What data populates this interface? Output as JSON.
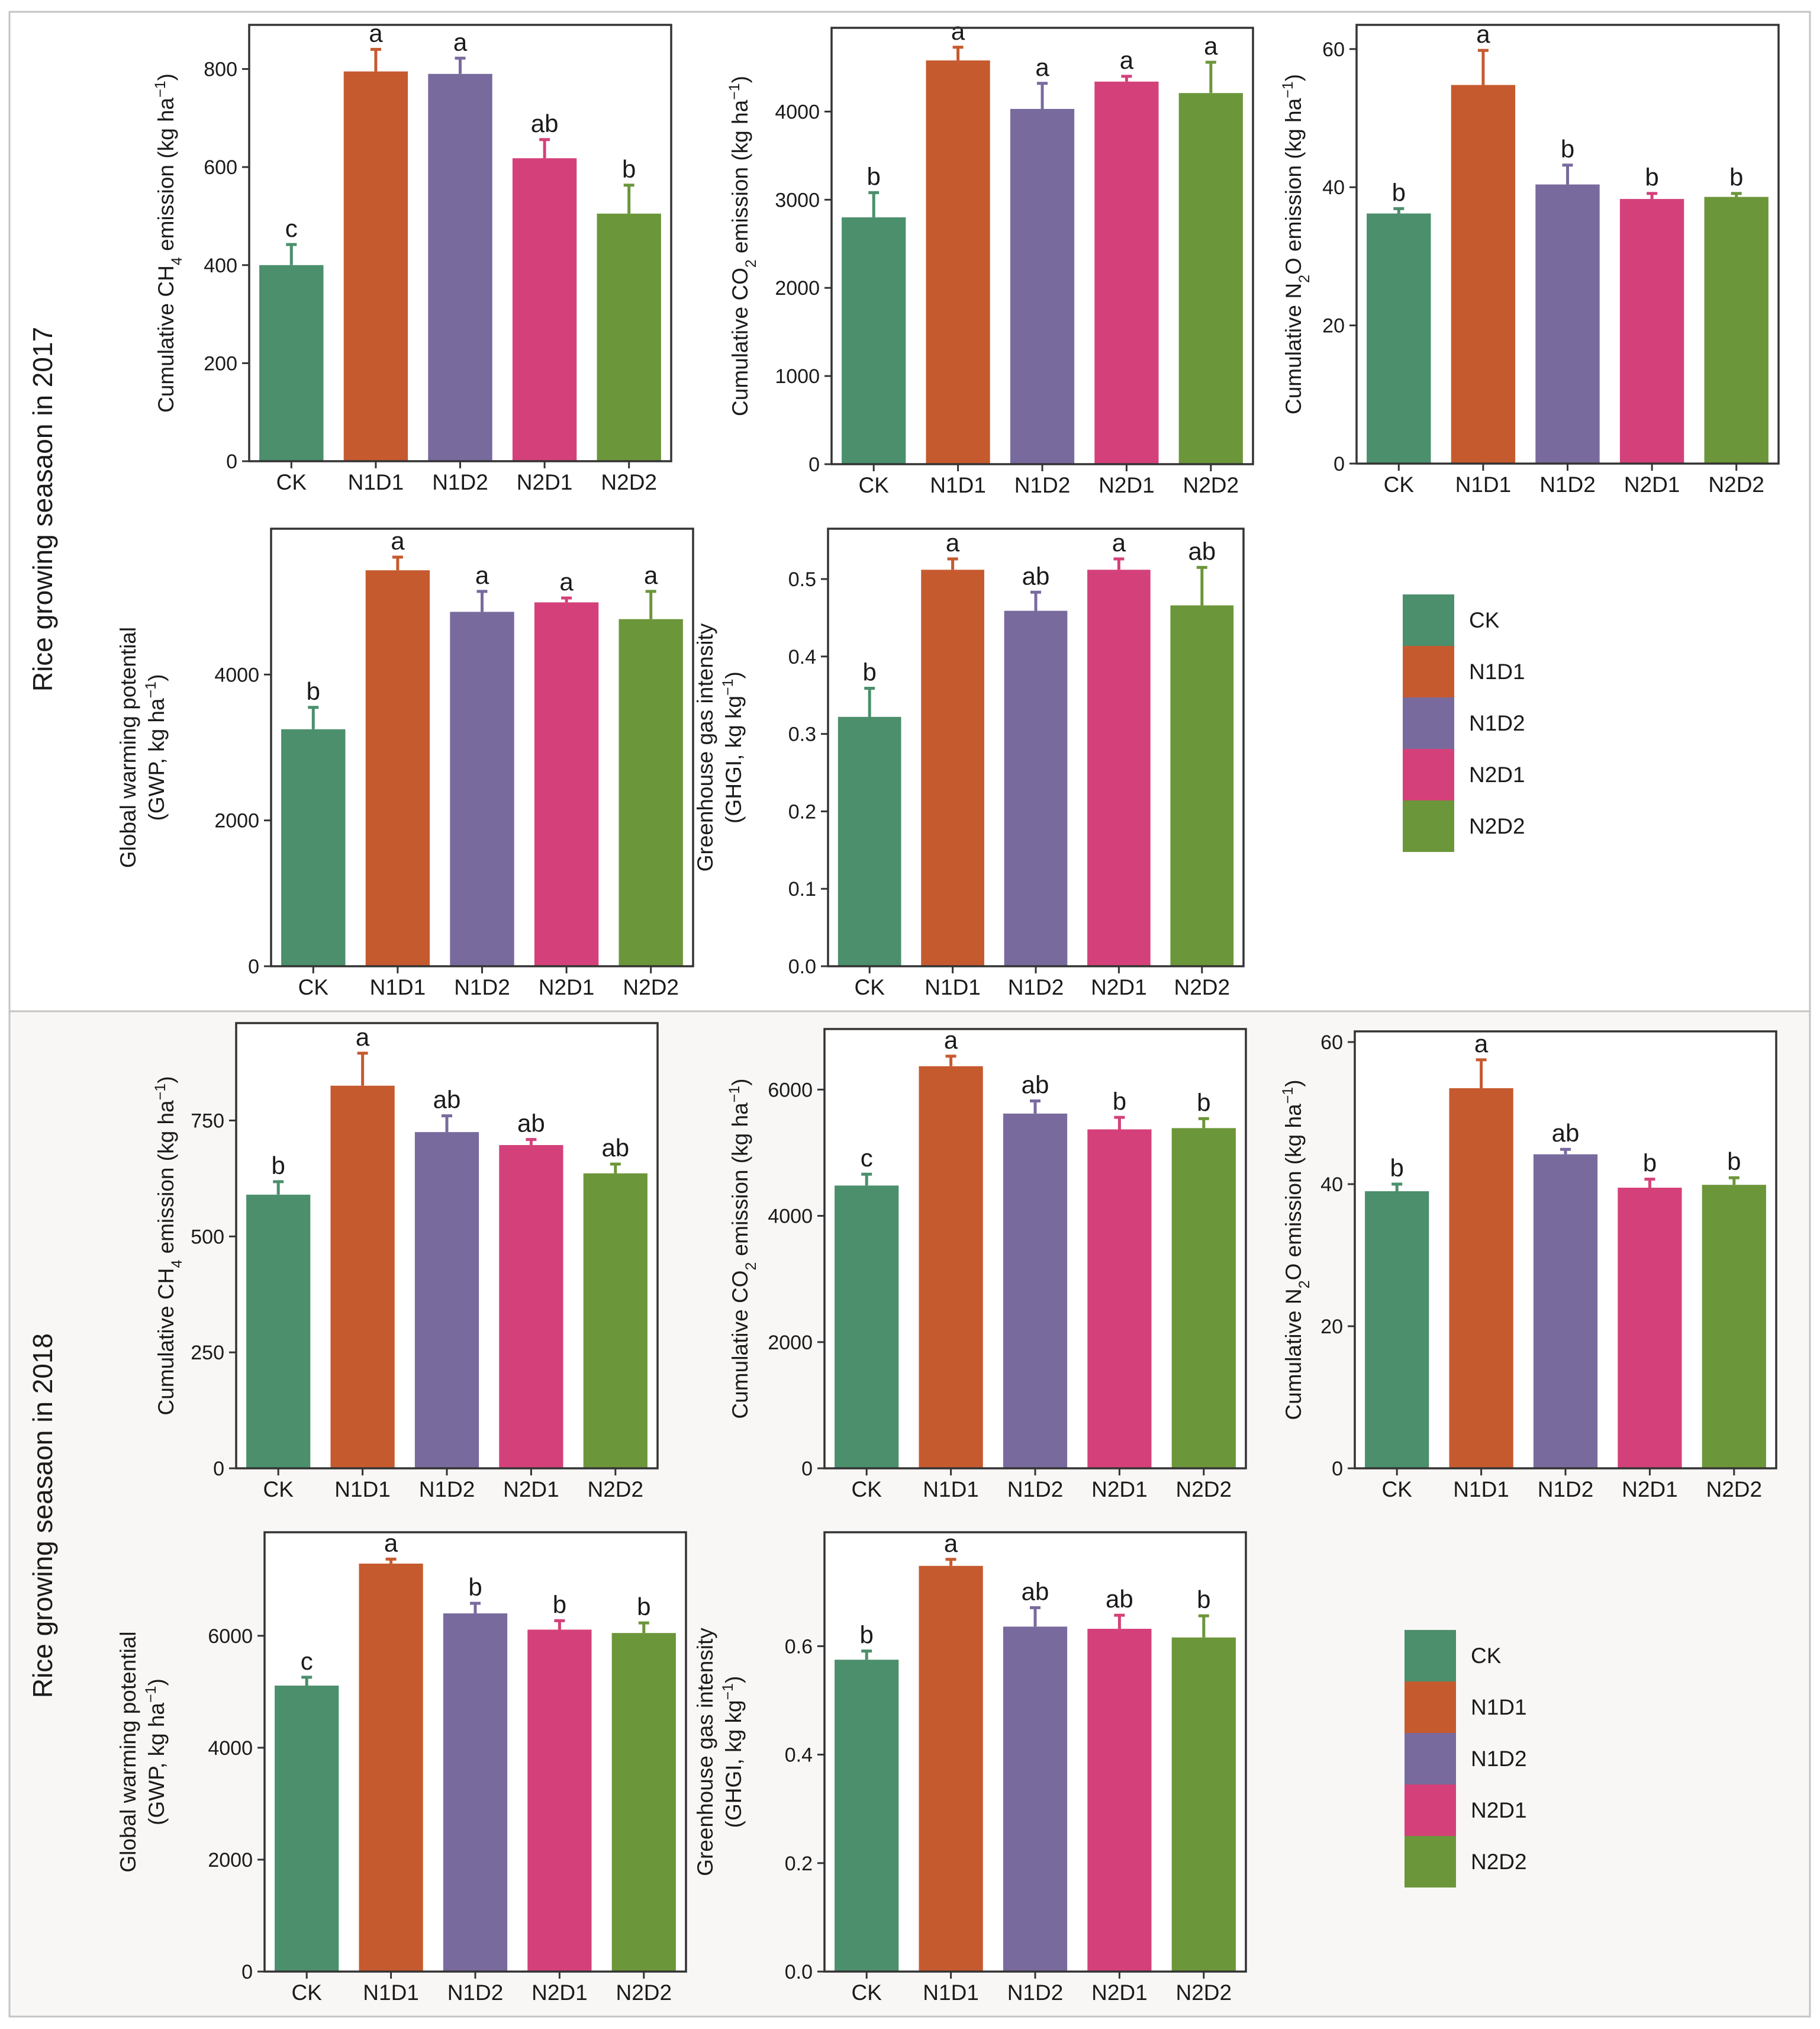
{
  "figure": {
    "colors": {
      "CK": "#4b8f6c",
      "N1D1": "#c65a2f",
      "N1D2": "#796a9e",
      "N2D1": "#d4417a",
      "N2D2": "#6c963a"
    },
    "sections": [
      {
        "title": "Rice growing seasaon in 2017",
        "legend": {
          "items": [
            "CK",
            "N1D1",
            "N1D2",
            "N2D1",
            "N2D2"
          ]
        },
        "panels": [
          {
            "y_label": {
              "lines": [
                [
                  [
                    "t",
                    "Cumulative CH"
                  ],
                  [
                    "sub",
                    "4"
                  ],
                  [
                    "t",
                    " emission (kg ha"
                  ],
                  [
                    "sup",
                    "−1"
                  ],
                  [
                    "t",
                    ")"
                  ]
                ]
              ]
            }
          },
          {
            "y_label": {
              "lines": [
                [
                  [
                    "t",
                    "Cumulative CO"
                  ],
                  [
                    "sub",
                    "2"
                  ],
                  [
                    "t",
                    " emission (kg ha"
                  ],
                  [
                    "sup",
                    "−1"
                  ],
                  [
                    "t",
                    ")"
                  ]
                ]
              ]
            }
          },
          {
            "y_label": {
              "lines": [
                [
                  [
                    "t",
                    "Cumulative N"
                  ],
                  [
                    "sub",
                    "2"
                  ],
                  [
                    "t",
                    "O emission (kg ha"
                  ],
                  [
                    "sup",
                    "−1"
                  ],
                  [
                    "t",
                    ")"
                  ]
                ]
              ]
            }
          },
          {
            "y_label": {
              "lines": [
                [
                  [
                    "t",
                    "Global warming potential"
                  ]
                ],
                [
                  [
                    "t",
                    "(GWP, kg ha"
                  ],
                  [
                    "sup",
                    "−1"
                  ],
                  [
                    "t",
                    ")"
                  ]
                ]
              ]
            }
          },
          {
            "y_label": {
              "lines": [
                [
                  [
                    "t",
                    "Greenhouse gas intensity"
                  ]
                ],
                [
                  [
                    "t",
                    "(GHGI, kg kg"
                  ],
                  [
                    "sup",
                    "−1"
                  ],
                  [
                    "t",
                    ")"
                  ]
                ]
              ]
            }
          }
        ]
      },
      {
        "title": "Rice growing seasaon in 2018",
        "legend": {
          "items": [
            "CK",
            "N1D1",
            "N1D2",
            "N2D1",
            "N2D2"
          ]
        },
        "panels": [
          {
            "y_label": {
              "lines": [
                [
                  [
                    "t",
                    "Cumulative CH"
                  ],
                  [
                    "sub",
                    "4"
                  ],
                  [
                    "t",
                    " emission (kg ha"
                  ],
                  [
                    "sup",
                    "−1"
                  ],
                  [
                    "t",
                    ")"
                  ]
                ]
              ]
            }
          },
          {
            "y_label": {
              "lines": [
                [
                  [
                    "t",
                    "Cumulative CO"
                  ],
                  [
                    "sub",
                    "2"
                  ],
                  [
                    "t",
                    " emission (kg ha"
                  ],
                  [
                    "sup",
                    "−1"
                  ],
                  [
                    "t",
                    ")"
                  ]
                ]
              ]
            }
          },
          {
            "y_label": {
              "lines": [
                [
                  [
                    "t",
                    "Cumulative N"
                  ],
                  [
                    "sub",
                    "2"
                  ],
                  [
                    "t",
                    "O emission (kg ha"
                  ],
                  [
                    "sup",
                    "−1"
                  ],
                  [
                    "t",
                    ")"
                  ]
                ]
              ]
            }
          },
          {
            "y_label": {
              "lines": [
                [
                  [
                    "t",
                    "Global warming potential"
                  ]
                ],
                [
                  [
                    "t",
                    "(GWP, kg ha"
                  ],
                  [
                    "sup",
                    "−1"
                  ],
                  [
                    "t",
                    ")"
                  ]
                ]
              ]
            }
          },
          {
            "y_label": {
              "lines": [
                [
                  [
                    "t",
                    "Greenhouse gas intensity"
                  ]
                ],
                [
                  [
                    "t",
                    "(GHGI, kg kg"
                  ],
                  [
                    "sup",
                    "−1"
                  ],
                  [
                    "t",
                    ")"
                  ]
                ]
              ]
            }
          }
        ]
      }
    ]
  },
  "chart_data": [
    {
      "type": "bar",
      "season": "2017",
      "title": "Cumulative CH4 emission",
      "ylabel": "Cumulative CH4 emission (kg ha−1)",
      "categories": [
        "CK",
        "N1D1",
        "N1D2",
        "N2D1",
        "N2D2"
      ],
      "values": [
        400,
        795,
        790,
        618,
        505
      ],
      "errors": [
        42,
        45,
        32,
        38,
        58
      ],
      "letters": [
        "c",
        "a",
        "a",
        "ab",
        "b"
      ],
      "ylim": [
        0,
        890
      ],
      "yticks": [
        0,
        200,
        400,
        600,
        800
      ],
      "ytick_labels": [
        "0",
        "200",
        "400",
        "600",
        "800"
      ]
    },
    {
      "type": "bar",
      "season": "2017",
      "title": "Cumulative CO2 emission",
      "ylabel": "Cumulative CO2 emission (kg ha−1)",
      "categories": [
        "CK",
        "N1D1",
        "N1D2",
        "N2D1",
        "N2D2"
      ],
      "values": [
        2800,
        4580,
        4030,
        4340,
        4210
      ],
      "errors": [
        280,
        150,
        290,
        60,
        350
      ],
      "letters": [
        "b",
        "a",
        "a",
        "a",
        "a"
      ],
      "ylim": [
        0,
        4950
      ],
      "yticks": [
        0,
        1000,
        2000,
        3000,
        4000
      ],
      "ytick_labels": [
        "0",
        "1000",
        "2000",
        "3000",
        "4000"
      ]
    },
    {
      "type": "bar",
      "season": "2017",
      "title": "Cumulative N2O emission",
      "ylabel": "Cumulative N2O emission (kg ha−1)",
      "categories": [
        "CK",
        "N1D1",
        "N1D2",
        "N2D1",
        "N2D2"
      ],
      "values": [
        36.2,
        54.8,
        40.4,
        38.3,
        38.6
      ],
      "errors": [
        0.7,
        5.0,
        2.8,
        0.8,
        0.5
      ],
      "letters": [
        "b",
        "a",
        "b",
        "b",
        "b"
      ],
      "ylim": [
        0,
        63.5
      ],
      "yticks": [
        0,
        20,
        40,
        60
      ],
      "ytick_labels": [
        "0",
        "20",
        "40",
        "60"
      ]
    },
    {
      "type": "bar",
      "season": "2017",
      "title": "Global warming potential",
      "ylabel": "Global warming potential (GWP, kg ha−1)",
      "categories": [
        "CK",
        "N1D1",
        "N1D2",
        "N2D1",
        "N2D2"
      ],
      "values": [
        3250,
        5430,
        4860,
        4990,
        4760
      ],
      "errors": [
        300,
        180,
        280,
        60,
        380
      ],
      "letters": [
        "b",
        "a",
        "a",
        "a",
        "a"
      ],
      "ylim": [
        0,
        6000
      ],
      "yticks": [
        0,
        2000,
        4000
      ],
      "ytick_labels": [
        "0",
        "2000",
        "4000"
      ]
    },
    {
      "type": "bar",
      "season": "2017",
      "title": "Greenhouse gas intensity",
      "ylabel": "Greenhouse gas intensity (GHGI, kg kg−1)",
      "categories": [
        "CK",
        "N1D1",
        "N1D2",
        "N2D1",
        "N2D2"
      ],
      "values": [
        0.322,
        0.512,
        0.459,
        0.512,
        0.466
      ],
      "errors": [
        0.037,
        0.014,
        0.024,
        0.014,
        0.049
      ],
      "letters": [
        "b",
        "a",
        "ab",
        "a",
        "ab"
      ],
      "ylim": [
        0,
        0.565
      ],
      "yticks": [
        0,
        0.1,
        0.2,
        0.3,
        0.4,
        0.5
      ],
      "ytick_labels": [
        "0.0",
        "0.1",
        "0.2",
        "0.3",
        "0.4",
        "0.5"
      ]
    },
    {
      "type": "bar",
      "season": "2018",
      "title": "Cumulative CH4 emission",
      "ylabel": "Cumulative CH4 emission (kg ha−1)",
      "categories": [
        "CK",
        "N1D1",
        "N1D2",
        "N2D1",
        "N2D2"
      ],
      "values": [
        590,
        825,
        725,
        697,
        636
      ],
      "errors": [
        28,
        70,
        35,
        12,
        20
      ],
      "letters": [
        "b",
        "a",
        "ab",
        "ab",
        "ab"
      ],
      "ylim": [
        0,
        960
      ],
      "yticks": [
        0,
        250,
        500,
        750
      ],
      "ytick_labels": [
        "0",
        "250",
        "500",
        "750"
      ]
    },
    {
      "type": "bar",
      "season": "2018",
      "title": "Cumulative CO2 emission",
      "ylabel": "Cumulative CO2 emission (kg ha−1)",
      "categories": [
        "CK",
        "N1D1",
        "N1D2",
        "N2D1",
        "N2D2"
      ],
      "values": [
        4480,
        6370,
        5620,
        5370,
        5390
      ],
      "errors": [
        180,
        160,
        200,
        190,
        150
      ],
      "letters": [
        "c",
        "a",
        "ab",
        "b",
        "b"
      ],
      "ylim": [
        0,
        6960
      ],
      "yticks": [
        0,
        2000,
        4000,
        6000
      ],
      "ytick_labels": [
        "0",
        "2000",
        "4000",
        "6000"
      ]
    },
    {
      "type": "bar",
      "season": "2018",
      "title": "Cumulative N2O emission",
      "ylabel": "Cumulative N2O emission (kg ha−1)",
      "categories": [
        "CK",
        "N1D1",
        "N1D2",
        "N2D1",
        "N2D2"
      ],
      "values": [
        39,
        53.5,
        44.2,
        39.5,
        39.9
      ],
      "errors": [
        1.0,
        4.0,
        0.7,
        1.2,
        1.0
      ],
      "letters": [
        "b",
        "a",
        "ab",
        "b",
        "b"
      ],
      "ylim": [
        0,
        61.5
      ],
      "yticks": [
        0,
        20,
        40,
        60
      ],
      "ytick_labels": [
        "0",
        "20",
        "40",
        "60"
      ]
    },
    {
      "type": "bar",
      "season": "2018",
      "title": "Global warming potential",
      "ylabel": "Global warming potential (GWP, kg ha−1)",
      "categories": [
        "CK",
        "N1D1",
        "N1D2",
        "N2D1",
        "N2D2"
      ],
      "values": [
        5110,
        7290,
        6400,
        6110,
        6050
      ],
      "errors": [
        150,
        80,
        180,
        160,
        180
      ],
      "letters": [
        "c",
        "a",
        "b",
        "b",
        "b"
      ],
      "ylim": [
        0,
        7850
      ],
      "yticks": [
        0,
        2000,
        4000,
        6000
      ],
      "ytick_labels": [
        "0",
        "2000",
        "4000",
        "6000"
      ]
    },
    {
      "type": "bar",
      "season": "2018",
      "title": "Greenhouse gas intensity",
      "ylabel": "Greenhouse gas intensity (GHGI, kg kg−1)",
      "categories": [
        "CK",
        "N1D1",
        "N1D2",
        "N2D1",
        "N2D2"
      ],
      "values": [
        0.575,
        0.748,
        0.636,
        0.632,
        0.616
      ],
      "errors": [
        0.016,
        0.012,
        0.035,
        0.025,
        0.04
      ],
      "letters": [
        "b",
        "a",
        "ab",
        "ab",
        "b"
      ],
      "ylim": [
        0,
        0.81
      ],
      "yticks": [
        0,
        0.2,
        0.4,
        0.6
      ],
      "ytick_labels": [
        "0.0",
        "0.2",
        "0.4",
        "0.6"
      ]
    }
  ]
}
